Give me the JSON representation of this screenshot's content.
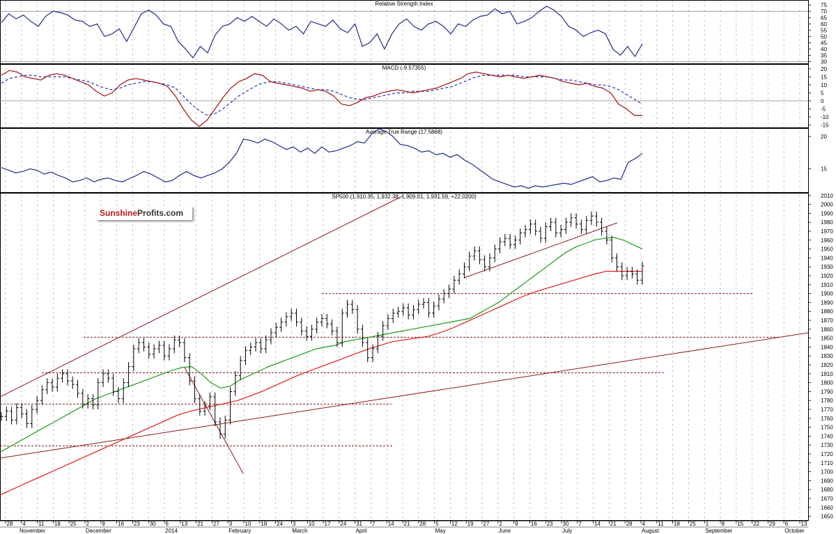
{
  "colors": {
    "rsi": "#1f2a8c",
    "macd": "#a01010",
    "macd_signal": "#2233cc",
    "atr": "#1f2a8c",
    "price_bar": "#000000",
    "sma50": "#1a9a1a",
    "sma200": "#e01818",
    "trendline": "#8b1a1a",
    "support": "#8b1a1a",
    "grid": "#b8b8b8",
    "logo_red": "#c0181c",
    "logo_dark": "#333333"
  },
  "logo": {
    "part1": "Sunshine",
    "part2": "Profits.com"
  },
  "x_axis": {
    "day_ticks": [
      "28",
      "4",
      "11",
      "18",
      "25",
      "2",
      "9",
      "16",
      "23",
      "30",
      "6",
      "13",
      "21",
      "27",
      "3",
      "10",
      "18",
      "24",
      "3",
      "10",
      "17",
      "24",
      "31",
      "7",
      "14",
      "21",
      "28",
      "5",
      "12",
      "19",
      "27",
      "2",
      "9",
      "16",
      "23",
      "30",
      "7",
      "14",
      "21",
      "28",
      "4",
      "11",
      "18",
      "25",
      "1",
      "8",
      "15",
      "22",
      "29",
      "6",
      "13"
    ],
    "month_labels": [
      "November",
      "December",
      "2014",
      "February",
      "March",
      "April",
      "May",
      "June",
      "July",
      "August",
      "September",
      "October"
    ]
  },
  "chart_data": [
    {
      "type": "line",
      "title": "Relative Strength Index",
      "y_ticks": [
        30,
        35,
        40,
        45,
        50,
        55,
        60,
        65,
        70,
        75
      ],
      "ylim": [
        28,
        79
      ],
      "reference_lines": [
        70,
        30
      ],
      "series": [
        {
          "values": [
            61,
            68,
            64,
            67,
            62,
            58,
            66,
            70,
            69,
            67,
            63,
            62,
            58,
            60,
            50,
            52,
            56,
            46,
            57,
            68,
            71,
            67,
            60,
            58,
            46,
            40,
            33,
            42,
            37,
            51,
            58,
            60,
            65,
            62,
            66,
            62,
            58,
            64,
            60,
            55,
            58,
            52,
            62,
            60,
            58,
            63,
            56,
            53,
            60,
            42,
            45,
            52,
            40,
            52,
            60,
            64,
            58,
            55,
            60,
            62,
            58,
            52,
            60,
            58,
            63,
            66,
            67,
            72,
            68,
            70,
            60,
            62,
            65,
            70,
            74,
            71,
            66,
            58,
            55,
            50,
            53,
            55,
            52,
            40,
            35,
            42,
            34,
            44
          ]
        }
      ]
    },
    {
      "type": "line",
      "title": "MACD (-9.57355)",
      "y_ticks": [
        -15,
        -10,
        -5,
        0,
        5,
        10,
        15,
        20
      ],
      "ylim": [
        -17,
        23
      ],
      "reference_lines": [
        0
      ],
      "series": [
        {
          "values": [
            16,
            19,
            18,
            15,
            14,
            13,
            16,
            17,
            16,
            14,
            12,
            10,
            6,
            3,
            5,
            10,
            13,
            14,
            13,
            12,
            11,
            9,
            3,
            -5,
            -12,
            -16,
            -12,
            -5,
            2,
            8,
            12,
            14,
            17,
            16,
            12,
            11,
            10,
            9,
            8,
            6,
            7,
            6,
            3,
            -2,
            -3,
            -1,
            2,
            3,
            5,
            6,
            7,
            6,
            5,
            6,
            7,
            8,
            10,
            12,
            14,
            17,
            18,
            17,
            16,
            15,
            16,
            15,
            14,
            15,
            16,
            15,
            14,
            12,
            11,
            10,
            11,
            9,
            8,
            5,
            -2,
            -5,
            -9,
            -9
          ]
        },
        {
          "values": [
            11,
            14,
            15,
            16,
            16,
            15,
            15,
            15,
            15,
            14,
            13,
            12,
            10,
            8,
            7,
            8,
            10,
            11,
            12,
            12,
            11,
            10,
            8,
            3,
            -2,
            -6,
            -9,
            -8,
            -5,
            -1,
            3,
            6,
            9,
            11,
            12,
            12,
            11,
            10,
            9,
            8,
            7,
            7,
            6,
            4,
            2,
            1,
            1,
            2,
            3,
            4,
            5,
            5,
            6,
            6,
            6,
            7,
            8,
            9,
            11,
            13,
            15,
            16,
            16,
            16,
            16,
            16,
            15,
            15,
            15,
            15,
            14,
            13,
            13,
            12,
            11,
            10,
            10,
            9,
            7,
            4,
            1,
            -2
          ]
        }
      ]
    },
    {
      "type": "line",
      "title": "Average True Range (17.5868)",
      "y_ticks": [
        15,
        20
      ],
      "ylim": [
        11.3,
        21.3
      ],
      "series": [
        {
          "values": [
            15.2,
            14.8,
            14.4,
            14.6,
            15.0,
            14.8,
            14.2,
            14.5,
            14.0,
            13.6,
            13.0,
            13.2,
            13.6,
            13.0,
            13.4,
            13.6,
            13.2,
            13.0,
            13.5,
            14.0,
            14.6,
            14.2,
            13.6,
            13.0,
            13.2,
            14.0,
            14.6,
            14.0,
            13.6,
            14.0,
            14.4,
            15.0,
            16.0,
            17.4,
            19.6,
            19.4,
            19.0,
            19.6,
            19.2,
            18.6,
            18.0,
            18.4,
            17.6,
            18.2,
            17.4,
            18.4,
            17.6,
            17.8,
            18.2,
            18.6,
            19.2,
            19.0,
            20.4,
            21.2,
            20.8,
            20.0,
            18.8,
            18.6,
            18.2,
            17.6,
            17.8,
            17.2,
            17.4,
            16.8,
            17.2,
            16.4,
            15.8,
            15.0,
            14.2,
            13.4,
            13.0,
            12.6,
            12.2,
            12.4,
            12.0,
            12.4,
            12.2,
            12.4,
            12.6,
            12.8,
            12.6,
            13.0,
            13.4,
            13.8,
            13.0,
            13.2,
            13.6,
            13.4,
            16.0,
            16.6,
            17.4
          ]
        }
      ]
    },
    {
      "type": "line",
      "title": "SP500 (1,910.35, 1,932.38, 1,909.01, 1,931.59, +22.0200)",
      "y_ticks": [
        1650,
        1660,
        1670,
        1680,
        1690,
        1700,
        1710,
        1720,
        1730,
        1740,
        1750,
        1760,
        1770,
        1780,
        1790,
        1800,
        1810,
        1820,
        1830,
        1840,
        1850,
        1860,
        1870,
        1880,
        1890,
        1900,
        1910,
        1920,
        1930,
        1940,
        1950,
        1960,
        1970,
        1980,
        1990,
        2000,
        2010
      ],
      "ylim": [
        1645,
        2013
      ],
      "price_closes": [
        1762,
        1768,
        1758,
        1772,
        1765,
        1754,
        1770,
        1780,
        1792,
        1800,
        1795,
        1805,
        1810,
        1802,
        1798,
        1788,
        1776,
        1782,
        1775,
        1800,
        1810,
        1805,
        1790,
        1782,
        1800,
        1818,
        1838,
        1845,
        1840,
        1832,
        1838,
        1842,
        1830,
        1838,
        1848,
        1845,
        1828,
        1802,
        1782,
        1768,
        1774,
        1784,
        1756,
        1742,
        1758,
        1790,
        1808,
        1825,
        1836,
        1840,
        1845,
        1838,
        1848,
        1856,
        1862,
        1868,
        1874,
        1878,
        1868,
        1858,
        1852,
        1860,
        1868,
        1872,
        1866,
        1858,
        1845,
        1878,
        1888,
        1882,
        1860,
        1845,
        1828,
        1838,
        1852,
        1864,
        1872,
        1878,
        1880,
        1884,
        1876,
        1882,
        1888,
        1890,
        1878,
        1886,
        1894,
        1900,
        1905,
        1915,
        1922,
        1930,
        1942,
        1948,
        1938,
        1930,
        1940,
        1950,
        1958,
        1962,
        1955,
        1960,
        1968,
        1972,
        1978,
        1970,
        1962,
        1975,
        1980,
        1968,
        1972,
        1980,
        1985,
        1978,
        1972,
        1982,
        1987,
        1980,
        1970,
        1960,
        1940,
        1930,
        1920,
        1925,
        1922,
        1915,
        1931
      ],
      "sma50": [
        1722,
        1728,
        1734,
        1740,
        1746,
        1752,
        1758,
        1764,
        1770,
        1776,
        1782,
        1786,
        1790,
        1794,
        1798,
        1802,
        1806,
        1810,
        1814,
        1817,
        1818,
        1810,
        1800,
        1794,
        1796,
        1803,
        1808,
        1813,
        1818,
        1822,
        1826,
        1830,
        1834,
        1838,
        1840,
        1842,
        1846,
        1848,
        1850,
        1852,
        1854,
        1856,
        1858,
        1860,
        1862,
        1864,
        1866,
        1868,
        1870,
        1872,
        1878,
        1884,
        1890,
        1898,
        1906,
        1914,
        1922,
        1930,
        1938,
        1946,
        1952,
        1956,
        1960,
        1962,
        1963,
        1960,
        1955,
        1950
      ],
      "sma200": [
        1674,
        1680,
        1686,
        1692,
        1698,
        1704,
        1710,
        1716,
        1722,
        1728,
        1734,
        1740,
        1746,
        1752,
        1758,
        1764,
        1768,
        1771,
        1774,
        1777,
        1780,
        1785,
        1790,
        1796,
        1802,
        1808,
        1813,
        1818,
        1823,
        1828,
        1833,
        1838,
        1842,
        1846,
        1848,
        1850,
        1852,
        1856,
        1861,
        1867,
        1873,
        1879,
        1885,
        1891,
        1897,
        1902,
        1906,
        1910,
        1914,
        1918,
        1922,
        1925,
        1925,
        1925,
        1925
      ],
      "sunshine_logo": true
    }
  ]
}
